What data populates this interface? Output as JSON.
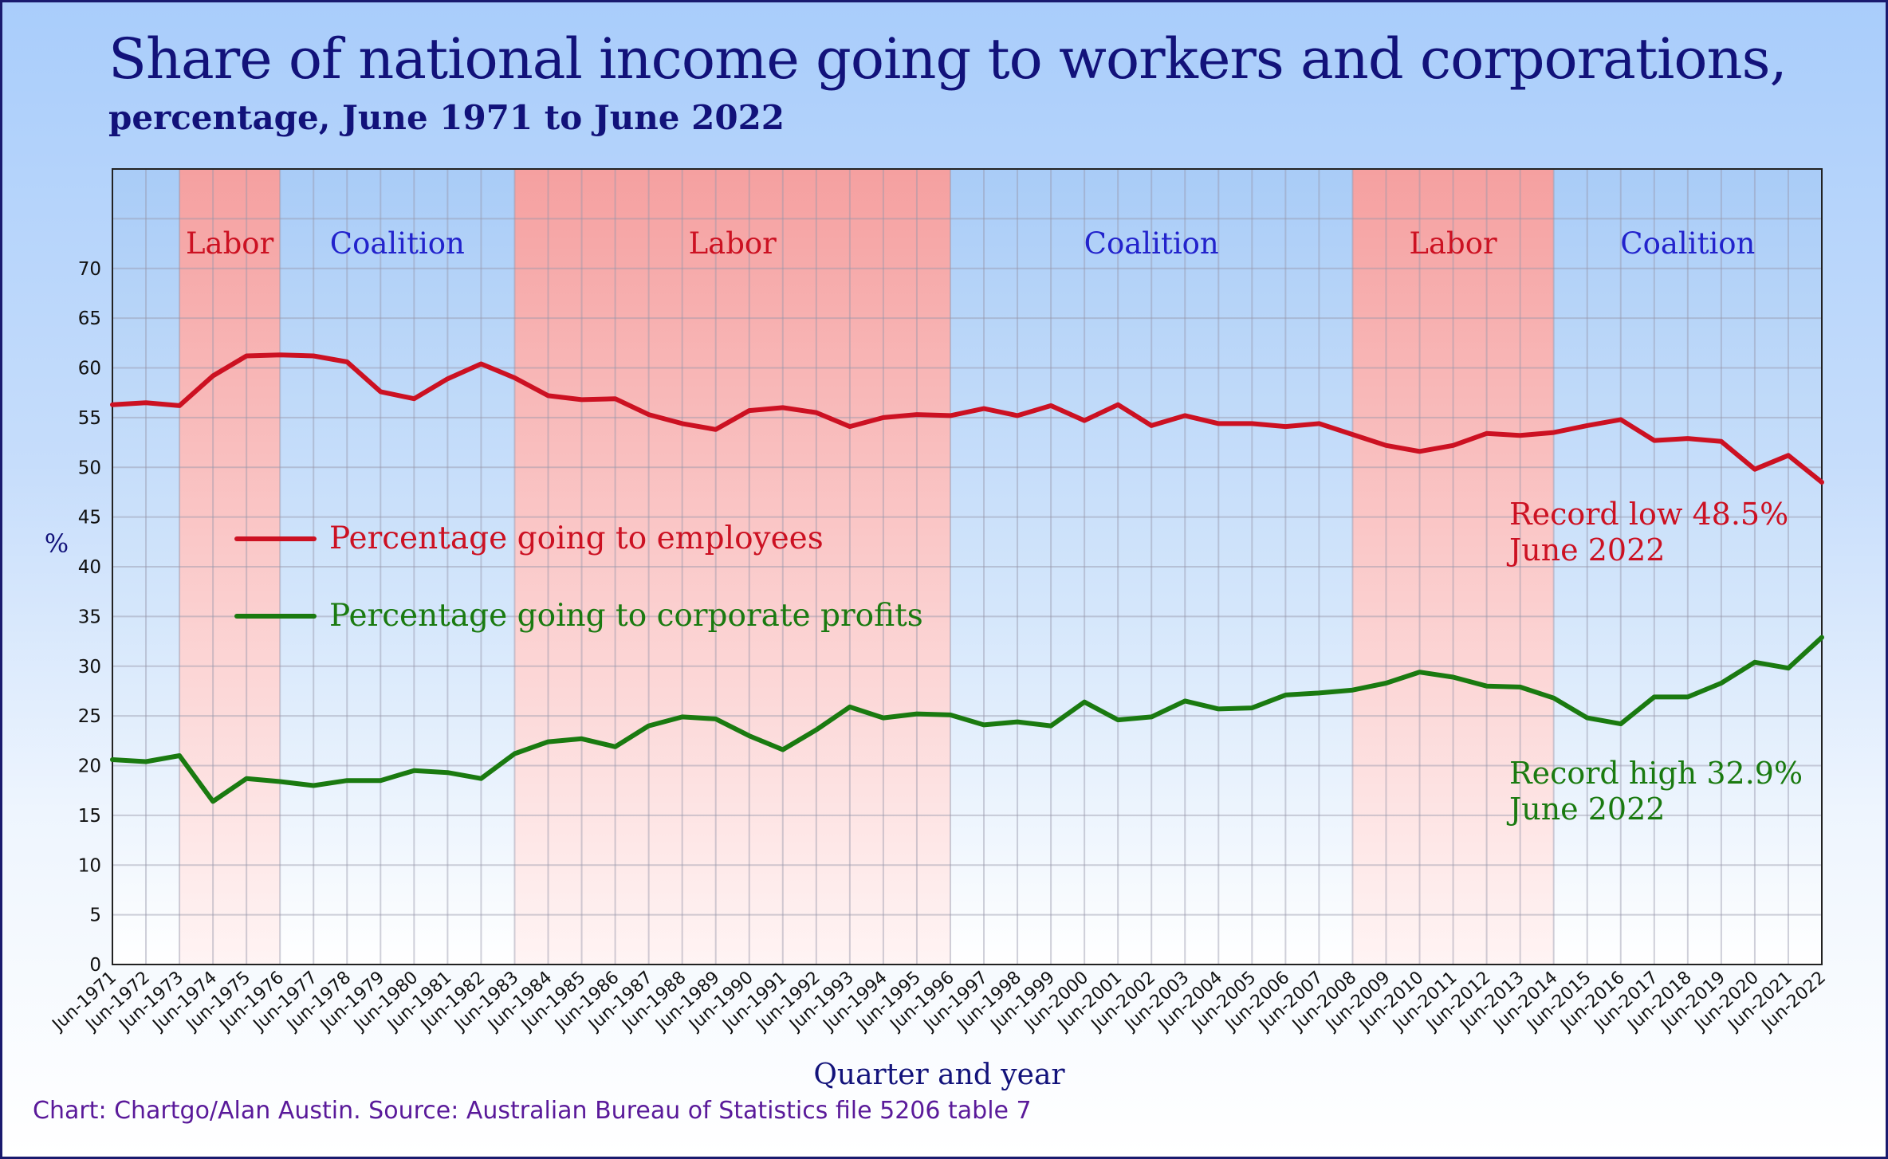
{
  "chart_data": {
    "type": "line",
    "title": "Share of national income going to workers and corporations,",
    "subtitle": "percentage, June 1971 to June 2022",
    "xlabel": "Quarter and year",
    "ylabel": "%",
    "ylim": [
      0,
      80
    ],
    "yticks": [
      0,
      5,
      10,
      15,
      20,
      25,
      30,
      35,
      40,
      45,
      50,
      55,
      60,
      65,
      70
    ],
    "grid": true,
    "legend_position": "center-left",
    "categories": [
      "Jun-1971",
      "Jun-1972",
      "Jun-1973",
      "Jun-1974",
      "Jun-1975",
      "Jun-1976",
      "Jun-1977",
      "Jun-1978",
      "Jun-1979",
      "Jun-1980",
      "Jun-1981",
      "Jun-1982",
      "Jun-1983",
      "Jun-1984",
      "Jun-1985",
      "Jun-1986",
      "Jun-1987",
      "Jun-1988",
      "Jun-1989",
      "Jun-1990",
      "Jun-1991",
      "Jun-1992",
      "Jun-1993",
      "Jun-1994",
      "Jun-1995",
      "Jun-1996",
      "Jun-1997",
      "Jun-1998",
      "Jun-1999",
      "Jun-2000",
      "Jun-2001",
      "Jun-2002",
      "Jun-2003",
      "Jun-2004",
      "Jun-2005",
      "Jun-2006",
      "Jun-2007",
      "Jun-2008",
      "Jun-2009",
      "Jun-2010",
      "Jun-2011",
      "Jun-2012",
      "Jun-2013",
      "Jun-2014",
      "Jun-2015",
      "Jun-2016",
      "Jun-2017",
      "Jun-2018",
      "Jun-2019",
      "Jun-2020",
      "Jun-2021",
      "Jun-2022"
    ],
    "series": [
      {
        "name": "Percentage going to employees",
        "color": "#cc1122",
        "values": [
          56.3,
          56.5,
          56.2,
          59.2,
          61.2,
          61.3,
          61.2,
          60.6,
          57.6,
          56.9,
          58.9,
          60.4,
          59.0,
          57.2,
          56.8,
          56.9,
          55.3,
          54.4,
          53.8,
          55.7,
          56.0,
          55.5,
          54.1,
          55.0,
          55.3,
          55.2,
          55.9,
          55.2,
          56.2,
          54.7,
          56.3,
          54.2,
          55.2,
          54.4,
          54.4,
          54.1,
          54.4,
          53.3,
          52.2,
          51.6,
          52.2,
          53.4,
          53.2,
          53.5,
          54.2,
          54.8,
          52.7,
          52.9,
          52.6,
          49.8,
          51.2,
          48.5
        ]
      },
      {
        "name": "Percentage going to corporate profits",
        "color": "#1a7a10",
        "values": [
          20.6,
          20.4,
          21.0,
          16.4,
          18.7,
          18.4,
          18.0,
          18.5,
          18.5,
          19.5,
          19.3,
          18.7,
          21.2,
          22.4,
          22.7,
          21.9,
          24.0,
          24.9,
          24.7,
          23.0,
          21.6,
          23.6,
          25.9,
          24.8,
          25.2,
          25.1,
          24.1,
          24.4,
          24.0,
          26.4,
          24.6,
          24.9,
          26.5,
          25.7,
          25.8,
          27.1,
          27.3,
          27.6,
          28.3,
          29.4,
          28.9,
          28.0,
          27.9,
          26.8,
          24.8,
          24.2,
          26.9,
          26.9,
          28.3,
          30.4,
          29.8,
          32.9
        ]
      }
    ],
    "government_periods": [
      {
        "party": "Labor",
        "label": "Labor",
        "start": "Jun-1973",
        "end": "Jun-1976",
        "color": "#cc1122"
      },
      {
        "party": "Coalition",
        "label": "Coalition",
        "start": "Jun-1976",
        "end": "Jun-1983",
        "color": "#2222cc"
      },
      {
        "party": "Labor",
        "label": "Labor",
        "start": "Jun-1983",
        "end": "Jun-1996",
        "color": "#cc1122"
      },
      {
        "party": "Coalition",
        "label": "Coalition",
        "start": "Jun-1996",
        "end": "Jun-2008",
        "color": "#2222cc"
      },
      {
        "party": "Labor",
        "label": "Labor",
        "start": "Jun-2008",
        "end": "Jun-2014",
        "color": "#cc1122"
      },
      {
        "party": "Coalition",
        "label": "Coalition",
        "start": "Jun-2014",
        "end": "Jun-2022",
        "color": "#2222cc"
      }
    ],
    "annotations": [
      {
        "series": 0,
        "lines": [
          "Record low 48.5%",
          "June 2022"
        ],
        "color": "#cc1122"
      },
      {
        "series": 1,
        "lines": [
          "Record high 32.9%",
          "June 2022"
        ],
        "color": "#1a7a10"
      }
    ]
  },
  "source_note": "Chart: Chartgo/Alan Austin. Source: Australian Bureau of Statistics file 5206 table 7"
}
